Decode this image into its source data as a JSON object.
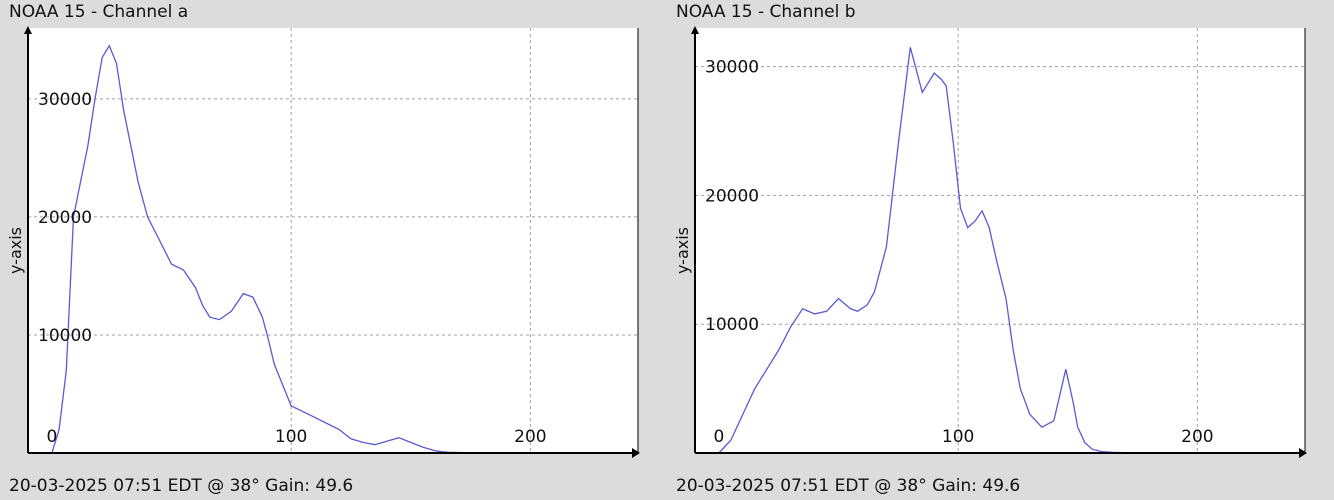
{
  "colors": {
    "background": "#dcdcdc",
    "plot_bg": "#ffffff",
    "series": "#5a5ad2",
    "grid": "#a0a0a0",
    "axis": "#000000"
  },
  "chart_data": [
    {
      "type": "line",
      "title": "NOAA 15 - Channel a",
      "footer": "20-03-2025 07:51 EDT @ 38° Gain: 49.6",
      "ylabel": "y-axis",
      "xlabel": "",
      "xlim": [
        -10,
        245
      ],
      "ylim": [
        0,
        36000
      ],
      "xticks": [
        0,
        100,
        200
      ],
      "yticks": [
        10000,
        20000,
        30000
      ],
      "grid": true,
      "series": [
        {
          "x": [
            0,
            3,
            6,
            9,
            12,
            15,
            18,
            21,
            24,
            27,
            30,
            33,
            36,
            40,
            45,
            50,
            55,
            60,
            63,
            66,
            70,
            75,
            80,
            84,
            88,
            90,
            93,
            96,
            100,
            105,
            110,
            115,
            120,
            125,
            130,
            135,
            140,
            145,
            150,
            155,
            160,
            163,
            166,
            170,
            175
          ],
          "y": [
            0,
            2000,
            7000,
            20000,
            23000,
            26000,
            30000,
            33500,
            34500,
            33000,
            29000,
            26000,
            23000,
            20000,
            18000,
            16000,
            15500,
            14000,
            12500,
            11500,
            11300,
            12000,
            13500,
            13200,
            11500,
            10000,
            7500,
            6000,
            4000,
            3500,
            3000,
            2500,
            2000,
            1200,
            900,
            700,
            1000,
            1300,
            900,
            500,
            200,
            100,
            60,
            40,
            20
          ]
        }
      ]
    },
    {
      "type": "line",
      "title": "NOAA 15 - Channel b",
      "footer": "20-03-2025 07:51 EDT @ 38° Gain: 49.6",
      "ylabel": "y-axis",
      "xlabel": "",
      "xlim": [
        -10,
        245
      ],
      "ylim": [
        0,
        33000
      ],
      "xticks": [
        0,
        100,
        200
      ],
      "yticks": [
        10000,
        20000,
        30000
      ],
      "grid": true,
      "series": [
        {
          "x": [
            0,
            5,
            10,
            15,
            20,
            25,
            30,
            35,
            40,
            45,
            50,
            55,
            58,
            62,
            65,
            70,
            75,
            80,
            85,
            90,
            93,
            95,
            98,
            101,
            104,
            107,
            110,
            113,
            116,
            120,
            123,
            126,
            130,
            135,
            140,
            145,
            148,
            150,
            153,
            156,
            160,
            165,
            170,
            175
          ],
          "y": [
            0,
            1000,
            3000,
            5000,
            6500,
            8000,
            9800,
            11200,
            10800,
            11000,
            12000,
            11200,
            11000,
            11500,
            12500,
            16000,
            24000,
            31500,
            28000,
            29500,
            29000,
            28500,
            24000,
            19000,
            17500,
            18000,
            18800,
            17500,
            15000,
            12000,
            8000,
            5000,
            3000,
            2000,
            2500,
            6500,
            4000,
            2000,
            800,
            300,
            100,
            50,
            20,
            0
          ]
        }
      ]
    }
  ]
}
